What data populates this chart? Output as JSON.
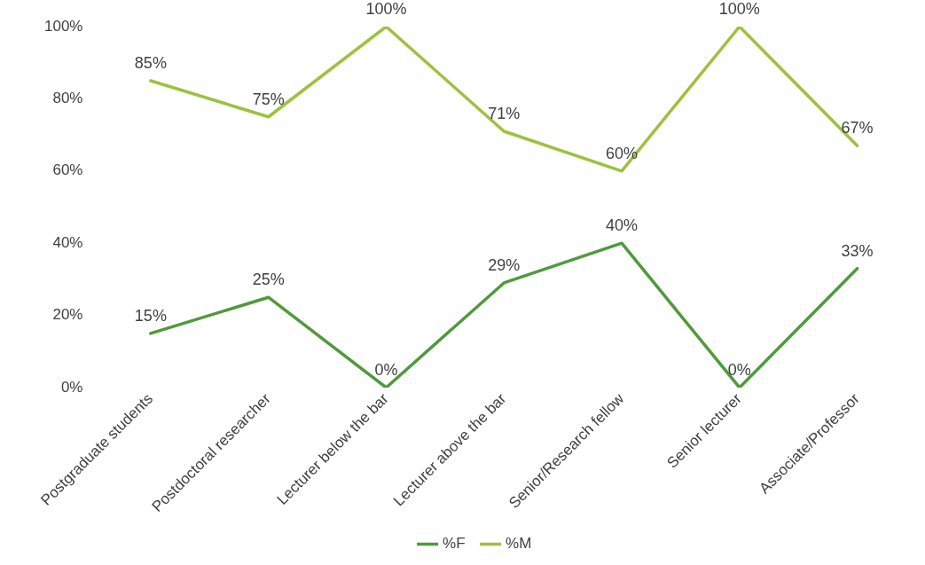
{
  "chart_data": {
    "type": "line",
    "categories": [
      "Postgraduate students",
      "Postdoctoral researcher",
      "Lecturer below the bar",
      "Lecturer above the bar",
      "Senior/Research fellow",
      "Senior lecturer",
      "Associate/Professor"
    ],
    "series": [
      {
        "name": "%F",
        "color": "#4f9a3c",
        "values": [
          15,
          25,
          0,
          29,
          40,
          0,
          33
        ],
        "value_labels": [
          "15%",
          "25%",
          "0%",
          "29%",
          "40%",
          "0%",
          "33%"
        ]
      },
      {
        "name": "%M",
        "color": "#9cc23c",
        "values": [
          85,
          75,
          100,
          71,
          60,
          100,
          67
        ],
        "value_labels": [
          "85%",
          "75%",
          "100%",
          "71%",
          "60%",
          "100%",
          "67%"
        ]
      }
    ],
    "ylim": [
      0,
      100
    ],
    "yticks": [
      {
        "value": 0,
        "label": "0%"
      },
      {
        "value": 20,
        "label": "20%"
      },
      {
        "value": 40,
        "label": "40%"
      },
      {
        "value": 60,
        "label": "60%"
      },
      {
        "value": 80,
        "label": "80%"
      },
      {
        "value": 100,
        "label": "100%"
      }
    ],
    "grid": false,
    "legend": "bottom",
    "marker": "none",
    "line_style": "solid"
  }
}
